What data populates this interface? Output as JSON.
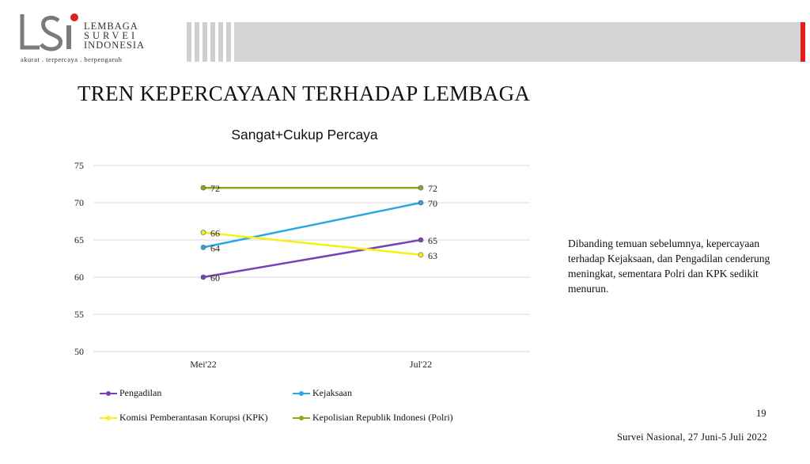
{
  "header": {
    "logo_lines": [
      "LEMBAGA",
      "SURVEI",
      "INDONESIA"
    ],
    "tagline": "akurat . terpercaya . berpengaruh",
    "accent_color": "#e0201a"
  },
  "page": {
    "title": "TREN KEPERCAYAAN TERHADAP LEMBAGA",
    "note": "Dibanding temuan sebelumnya, kepercayaan terhadap Kejaksaan, dan Pengadilan cenderung meningkat, sementara Polri dan KPK sedikit menurun.",
    "page_number": "19",
    "survey_label": "Survei Nasional, 27 Juni-5 Juli 2022"
  },
  "chart_data": {
    "type": "line",
    "title": "Sangat+Cukup Percaya",
    "categories": [
      "Mei'22",
      "Jul'22"
    ],
    "ylim": [
      50,
      75
    ],
    "yticks": [
      50,
      55,
      60,
      65,
      70,
      75
    ],
    "grid": true,
    "legend_position": "bottom",
    "series": [
      {
        "name": "Pengadilan",
        "values": [
          60,
          65
        ],
        "labels": [
          "60",
          "65"
        ],
        "color": "#7d3fb5"
      },
      {
        "name": "Kejaksaan",
        "values": [
          64,
          70
        ],
        "labels": [
          "64",
          "70"
        ],
        "color": "#2aa7dd"
      },
      {
        "name": "Komisi Pemberantasan Korupsi (KPK)",
        "values": [
          66,
          63
        ],
        "labels": [
          "66",
          "63"
        ],
        "color": "#f2f21a"
      },
      {
        "name": "Kepolisian Republik Indonesi (Polri)",
        "values": [
          72,
          72
        ],
        "labels": [
          "72",
          "72"
        ],
        "color": "#8aa81c"
      }
    ]
  }
}
